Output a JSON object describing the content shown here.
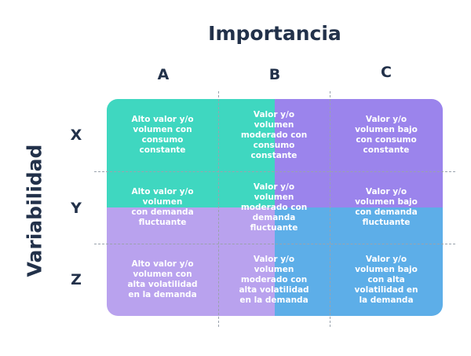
{
  "axes": {
    "top_title": "Importancia",
    "left_title": "Variabilidad",
    "columns": [
      "A",
      "B",
      "C"
    ],
    "rows": [
      "X",
      "Y",
      "Z"
    ]
  },
  "colors": {
    "teal": "#3fd7c0",
    "violet": "#9b84ec",
    "lavender": "#b9a2ee",
    "blue": "#5daee8",
    "text_dark": "#22314a"
  },
  "cells": {
    "AX": "Alto valor y/o\nvolumen con\nconsumo\nconstante",
    "BX": "Valor y/o\nvolumen\nmoderado con\nconsumo\nconstante",
    "CX": "Valor y/o\nvolumen bajo\ncon consumo\nconstante",
    "AY": "Alto valor y/o\nvolumen\ncon demanda\nfluctuante",
    "BY": "Valor y/o\nvolumen\nmoderado con\ndemanda\nfluctuante",
    "CY": "Valor y/o\nvolumen bajo\ncon demanda\nfluctuante",
    "AZ": "Alto valor y/o\nvolumen con\nalta volatilidad\nen la demanda",
    "BZ": "Valor y/o\nvolumen\nmoderado con\nalta volatilidad\nen la demanda",
    "CZ": "Valor y/o\nvolumen bajo\ncon alta\nvolatilidad en\nla demanda"
  }
}
